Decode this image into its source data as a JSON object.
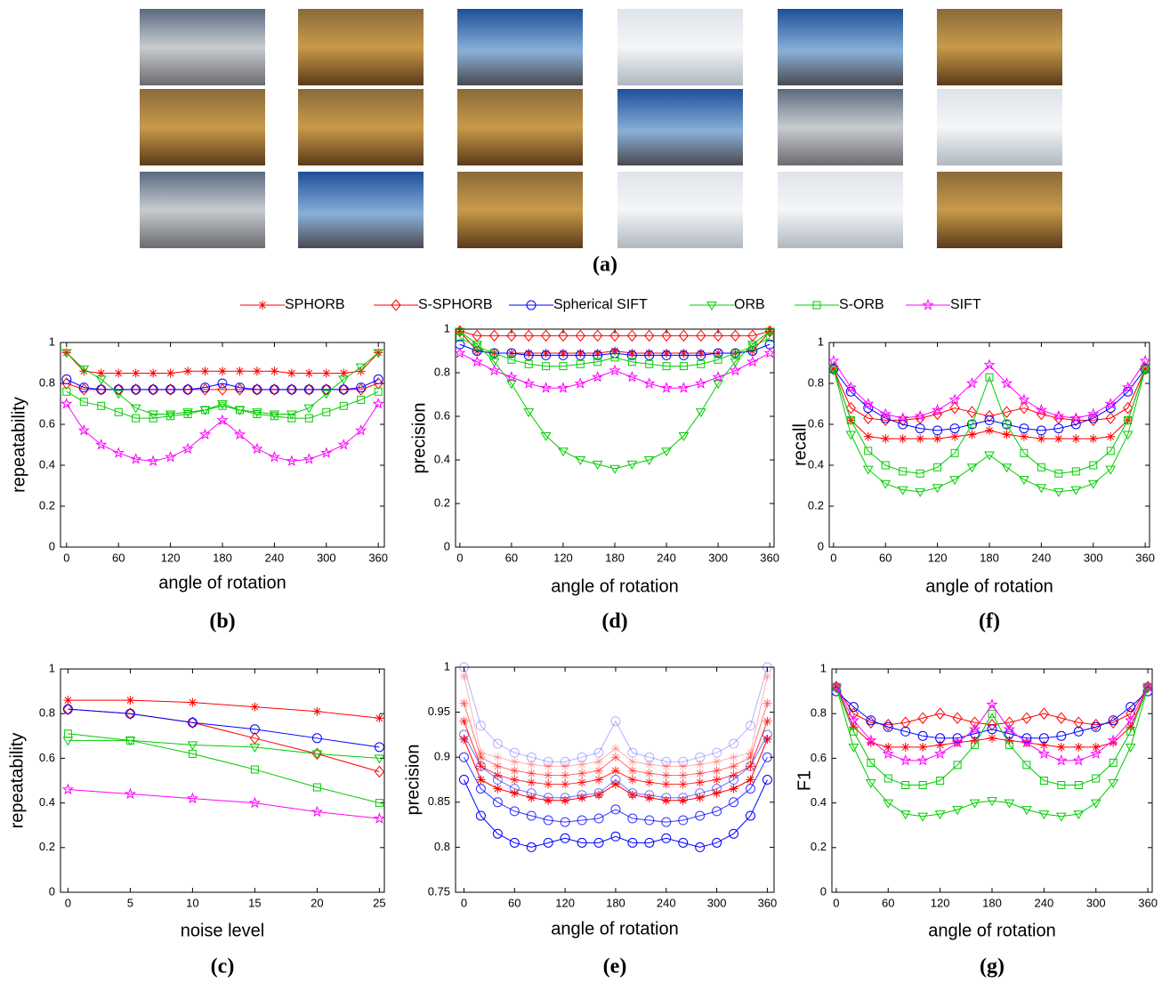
{
  "figure_label": "(a)",
  "legend": [
    {
      "name": "SPHORB",
      "color": "#ff0000",
      "marker": "asterisk"
    },
    {
      "name": "S-SPHORB",
      "color": "#ff0000",
      "marker": "diamond"
    },
    {
      "name": "Spherical SIFT",
      "color": "#0000ff",
      "marker": "circle"
    },
    {
      "name": "ORB",
      "color": "#00cc00",
      "marker": "triangle"
    },
    {
      "name": "S-ORB",
      "color": "#00cc00",
      "marker": "square"
    },
    {
      "name": "SIFT",
      "color": "#ff00ff",
      "marker": "star"
    }
  ],
  "chart_data": [
    {
      "type": "line",
      "panel_label": "(b)",
      "x_label": "angle of rotation",
      "y_label": "repeatability",
      "x": [
        0,
        20,
        40,
        60,
        80,
        100,
        120,
        140,
        160,
        180,
        200,
        220,
        240,
        260,
        280,
        300,
        320,
        340,
        360
      ],
      "xlim": [
        -7,
        367
      ],
      "ylim": [
        0,
        1
      ],
      "xticks": [
        0,
        60,
        120,
        180,
        240,
        300,
        360
      ],
      "yticks": [
        0,
        0.2,
        0.4,
        0.6,
        0.8,
        1
      ],
      "series": [
        {
          "values": [
            0.95,
            0.86,
            0.85,
            0.85,
            0.85,
            0.85,
            0.85,
            0.86,
            0.86,
            0.86,
            0.86,
            0.86,
            0.86,
            0.85,
            0.85,
            0.85,
            0.85,
            0.86,
            0.95
          ]
        },
        {
          "values": [
            0.8,
            0.77,
            0.77,
            0.77,
            0.77,
            0.77,
            0.77,
            0.77,
            0.77,
            0.77,
            0.77,
            0.77,
            0.77,
            0.77,
            0.77,
            0.77,
            0.77,
            0.77,
            0.8
          ]
        },
        {
          "values": [
            0.82,
            0.78,
            0.77,
            0.77,
            0.77,
            0.77,
            0.77,
            0.77,
            0.78,
            0.8,
            0.78,
            0.77,
            0.77,
            0.77,
            0.77,
            0.77,
            0.77,
            0.78,
            0.82
          ]
        },
        {
          "values": [
            0.95,
            0.87,
            0.82,
            0.75,
            0.68,
            0.65,
            0.65,
            0.66,
            0.67,
            0.7,
            0.67,
            0.66,
            0.65,
            0.65,
            0.68,
            0.75,
            0.82,
            0.88,
            0.95
          ]
        },
        {
          "values": [
            0.76,
            0.71,
            0.69,
            0.66,
            0.63,
            0.63,
            0.64,
            0.65,
            0.67,
            0.69,
            0.67,
            0.65,
            0.64,
            0.63,
            0.63,
            0.66,
            0.69,
            0.72,
            0.76
          ]
        },
        {
          "values": [
            0.7,
            0.57,
            0.5,
            0.46,
            0.43,
            0.42,
            0.44,
            0.48,
            0.55,
            0.62,
            0.55,
            0.48,
            0.44,
            0.42,
            0.43,
            0.46,
            0.5,
            0.57,
            0.7
          ]
        }
      ]
    },
    {
      "type": "line",
      "panel_label": "(d)",
      "x_label": "angle of rotation",
      "y_label": "precision",
      "x": [
        0,
        20,
        40,
        60,
        80,
        100,
        120,
        140,
        160,
        180,
        200,
        220,
        240,
        260,
        280,
        300,
        320,
        340,
        360
      ],
      "xlim": [
        -5,
        365
      ],
      "ylim": [
        0,
        1
      ],
      "xticks": [
        0,
        60,
        120,
        180,
        240,
        300,
        360
      ],
      "yticks": [
        0,
        0.2,
        0.4,
        0.6,
        0.8,
        1
      ],
      "series": [
        {
          "values": [
            0.99,
            0.9,
            0.89,
            0.89,
            0.89,
            0.89,
            0.89,
            0.89,
            0.89,
            0.9,
            0.89,
            0.89,
            0.89,
            0.89,
            0.89,
            0.89,
            0.89,
            0.9,
            0.99
          ]
        },
        {
          "values": [
            0.99,
            0.97,
            0.97,
            0.97,
            0.97,
            0.97,
            0.97,
            0.97,
            0.97,
            0.97,
            0.97,
            0.97,
            0.97,
            0.97,
            0.97,
            0.97,
            0.97,
            0.97,
            0.99
          ]
        },
        {
          "values": [
            0.93,
            0.9,
            0.89,
            0.89,
            0.88,
            0.88,
            0.88,
            0.88,
            0.88,
            0.89,
            0.88,
            0.88,
            0.88,
            0.88,
            0.88,
            0.89,
            0.89,
            0.9,
            0.93
          ]
        },
        {
          "values": [
            0.99,
            0.93,
            0.85,
            0.75,
            0.62,
            0.51,
            0.44,
            0.4,
            0.38,
            0.36,
            0.38,
            0.4,
            0.44,
            0.51,
            0.62,
            0.75,
            0.85,
            0.93,
            0.99
          ]
        },
        {
          "values": [
            0.96,
            0.92,
            0.89,
            0.86,
            0.84,
            0.83,
            0.83,
            0.84,
            0.85,
            0.87,
            0.85,
            0.84,
            0.83,
            0.83,
            0.84,
            0.86,
            0.89,
            0.92,
            0.96
          ]
        },
        {
          "values": [
            0.89,
            0.85,
            0.81,
            0.78,
            0.75,
            0.73,
            0.73,
            0.75,
            0.78,
            0.81,
            0.78,
            0.75,
            0.73,
            0.73,
            0.75,
            0.78,
            0.81,
            0.85,
            0.89
          ]
        }
      ]
    },
    {
      "type": "line",
      "panel_label": "(f)",
      "x_label": "angle of rotation",
      "y_label": "recall",
      "x": [
        0,
        20,
        40,
        60,
        80,
        100,
        120,
        140,
        160,
        180,
        200,
        220,
        240,
        260,
        280,
        300,
        320,
        340,
        360
      ],
      "xlim": [
        -5,
        365
      ],
      "ylim": [
        0,
        1
      ],
      "xticks": [
        0,
        60,
        120,
        180,
        240,
        300,
        360
      ],
      "yticks": [
        0,
        0.2,
        0.4,
        0.6,
        0.8,
        1
      ],
      "series": [
        {
          "values": [
            0.87,
            0.62,
            0.54,
            0.53,
            0.53,
            0.53,
            0.53,
            0.54,
            0.55,
            0.57,
            0.55,
            0.54,
            0.53,
            0.53,
            0.53,
            0.53,
            0.54,
            0.62,
            0.87
          ]
        },
        {
          "values": [
            0.87,
            0.68,
            0.63,
            0.62,
            0.62,
            0.63,
            0.65,
            0.68,
            0.66,
            0.64,
            0.66,
            0.68,
            0.65,
            0.63,
            0.62,
            0.62,
            0.63,
            0.68,
            0.87
          ]
        },
        {
          "values": [
            0.87,
            0.76,
            0.68,
            0.63,
            0.6,
            0.58,
            0.57,
            0.58,
            0.6,
            0.62,
            0.6,
            0.58,
            0.57,
            0.58,
            0.6,
            0.63,
            0.68,
            0.76,
            0.87
          ]
        },
        {
          "values": [
            0.87,
            0.55,
            0.38,
            0.31,
            0.28,
            0.27,
            0.29,
            0.33,
            0.39,
            0.45,
            0.39,
            0.33,
            0.29,
            0.27,
            0.28,
            0.31,
            0.38,
            0.55,
            0.87
          ]
        },
        {
          "values": [
            0.87,
            0.62,
            0.47,
            0.4,
            0.37,
            0.36,
            0.39,
            0.46,
            0.6,
            0.83,
            0.6,
            0.46,
            0.39,
            0.36,
            0.37,
            0.4,
            0.47,
            0.62,
            0.87
          ]
        },
        {
          "values": [
            0.91,
            0.78,
            0.7,
            0.65,
            0.63,
            0.64,
            0.67,
            0.72,
            0.8,
            0.89,
            0.8,
            0.72,
            0.67,
            0.64,
            0.63,
            0.65,
            0.7,
            0.78,
            0.91
          ]
        }
      ]
    },
    {
      "type": "line",
      "panel_label": "(c)",
      "x_label": "noise level",
      "y_label": "repeatability",
      "x": [
        0,
        5,
        10,
        15,
        20,
        25
      ],
      "xlim": [
        -0.6,
        25.4
      ],
      "ylim": [
        0,
        1
      ],
      "xticks": [
        0,
        5,
        10,
        15,
        20,
        25
      ],
      "yticks": [
        0,
        0.2,
        0.4,
        0.6,
        0.8,
        1
      ],
      "series": [
        {
          "values": [
            0.86,
            0.86,
            0.85,
            0.83,
            0.81,
            0.78
          ]
        },
        {
          "values": [
            0.82,
            0.8,
            0.76,
            0.69,
            0.62,
            0.54
          ]
        },
        {
          "values": [
            0.82,
            0.8,
            0.76,
            0.73,
            0.69,
            0.65
          ]
        },
        {
          "values": [
            0.68,
            0.68,
            0.66,
            0.65,
            0.62,
            0.6
          ]
        },
        {
          "values": [
            0.71,
            0.68,
            0.62,
            0.55,
            0.47,
            0.4
          ]
        },
        {
          "values": [
            0.46,
            0.44,
            0.42,
            0.4,
            0.36,
            0.33
          ]
        }
      ]
    },
    {
      "type": "line",
      "panel_label": "(e)",
      "x_label": "angle of rotation",
      "y_label": "precision",
      "x": [
        0,
        20,
        40,
        60,
        80,
        100,
        120,
        140,
        160,
        180,
        200,
        220,
        240,
        260,
        280,
        300,
        320,
        340,
        360
      ],
      "xlim": [
        -10,
        368
      ],
      "ylim": [
        0.75,
        1
      ],
      "xticks": [
        0,
        60,
        120,
        180,
        240,
        300,
        360
      ],
      "yticks": [
        0.75,
        0.8,
        0.85,
        0.9,
        0.95,
        1
      ],
      "series": [
        {
          "color": "#0000ff",
          "opacity": 1,
          "marker": "circle",
          "values": [
            0.875,
            0.835,
            0.815,
            0.805,
            0.8,
            0.805,
            0.81,
            0.805,
            0.805,
            0.812,
            0.805,
            0.805,
            0.81,
            0.805,
            0.8,
            0.805,
            0.815,
            0.835,
            0.875
          ]
        },
        {
          "color": "#0000ff",
          "opacity": 0.8,
          "marker": "circle",
          "values": [
            0.9,
            0.865,
            0.85,
            0.84,
            0.835,
            0.83,
            0.828,
            0.83,
            0.832,
            0.842,
            0.832,
            0.83,
            0.828,
            0.83,
            0.835,
            0.84,
            0.85,
            0.865,
            0.9
          ]
        },
        {
          "color": "#0000ff",
          "opacity": 0.55,
          "marker": "circle",
          "values": [
            0.925,
            0.89,
            0.875,
            0.865,
            0.86,
            0.855,
            0.855,
            0.858,
            0.86,
            0.875,
            0.86,
            0.858,
            0.855,
            0.855,
            0.86,
            0.865,
            0.875,
            0.89,
            0.925
          ]
        },
        {
          "color": "#0000ff",
          "opacity": 0.3,
          "marker": "circle",
          "values": [
            1,
            0.935,
            0.915,
            0.905,
            0.9,
            0.895,
            0.895,
            0.9,
            0.905,
            0.94,
            0.905,
            0.9,
            0.895,
            0.895,
            0.9,
            0.905,
            0.915,
            0.935,
            1
          ]
        },
        {
          "color": "#ff0000",
          "opacity": 1,
          "marker": "asterisk",
          "values": [
            0.92,
            0.875,
            0.865,
            0.86,
            0.855,
            0.852,
            0.852,
            0.855,
            0.858,
            0.87,
            0.858,
            0.855,
            0.852,
            0.852,
            0.855,
            0.86,
            0.865,
            0.875,
            0.92
          ]
        },
        {
          "color": "#ff0000",
          "opacity": 0.8,
          "marker": "asterisk",
          "values": [
            0.94,
            0.89,
            0.88,
            0.875,
            0.872,
            0.87,
            0.87,
            0.872,
            0.875,
            0.885,
            0.875,
            0.872,
            0.87,
            0.87,
            0.872,
            0.875,
            0.88,
            0.89,
            0.94
          ]
        },
        {
          "color": "#ff0000",
          "opacity": 0.55,
          "marker": "asterisk",
          "values": [
            0.96,
            0.9,
            0.89,
            0.885,
            0.882,
            0.88,
            0.88,
            0.882,
            0.885,
            0.9,
            0.885,
            0.882,
            0.88,
            0.88,
            0.882,
            0.885,
            0.89,
            0.9,
            0.96
          ]
        },
        {
          "color": "#ff0000",
          "opacity": 0.3,
          "marker": "asterisk",
          "values": [
            0.99,
            0.905,
            0.9,
            0.895,
            0.892,
            0.89,
            0.89,
            0.892,
            0.895,
            0.91,
            0.895,
            0.892,
            0.89,
            0.89,
            0.892,
            0.895,
            0.9,
            0.905,
            0.99
          ]
        }
      ]
    },
    {
      "type": "line",
      "panel_label": "(g)",
      "x_label": "angle of rotation",
      "y_label": "F1",
      "x": [
        0,
        20,
        40,
        60,
        80,
        100,
        120,
        140,
        160,
        180,
        200,
        220,
        240,
        260,
        280,
        300,
        320,
        340,
        360
      ],
      "xlim": [
        -5,
        365
      ],
      "ylim": [
        0,
        1
      ],
      "xticks": [
        0,
        60,
        120,
        180,
        240,
        300,
        360
      ],
      "yticks": [
        0,
        0.2,
        0.4,
        0.6,
        0.8,
        1
      ],
      "series": [
        {
          "values": [
            0.92,
            0.74,
            0.67,
            0.65,
            0.65,
            0.65,
            0.66,
            0.67,
            0.68,
            0.69,
            0.68,
            0.67,
            0.66,
            0.65,
            0.65,
            0.65,
            0.67,
            0.74,
            0.92
          ]
        },
        {
          "values": [
            0.92,
            0.8,
            0.76,
            0.75,
            0.76,
            0.78,
            0.8,
            0.78,
            0.76,
            0.75,
            0.76,
            0.78,
            0.8,
            0.78,
            0.76,
            0.75,
            0.76,
            0.8,
            0.92
          ]
        },
        {
          "values": [
            0.9,
            0.83,
            0.77,
            0.74,
            0.72,
            0.7,
            0.69,
            0.69,
            0.71,
            0.73,
            0.71,
            0.69,
            0.69,
            0.7,
            0.72,
            0.74,
            0.77,
            0.83,
            0.9
          ]
        },
        {
          "values": [
            0.92,
            0.65,
            0.49,
            0.4,
            0.35,
            0.34,
            0.35,
            0.37,
            0.4,
            0.41,
            0.4,
            0.37,
            0.35,
            0.34,
            0.35,
            0.4,
            0.49,
            0.65,
            0.92
          ]
        },
        {
          "values": [
            0.92,
            0.72,
            0.58,
            0.51,
            0.48,
            0.48,
            0.5,
            0.57,
            0.66,
            0.8,
            0.66,
            0.57,
            0.5,
            0.48,
            0.48,
            0.51,
            0.58,
            0.72,
            0.92
          ]
        },
        {
          "values": [
            0.92,
            0.77,
            0.68,
            0.62,
            0.59,
            0.59,
            0.62,
            0.67,
            0.73,
            0.84,
            0.73,
            0.67,
            0.62,
            0.59,
            0.59,
            0.62,
            0.68,
            0.77,
            0.92
          ]
        }
      ]
    }
  ]
}
